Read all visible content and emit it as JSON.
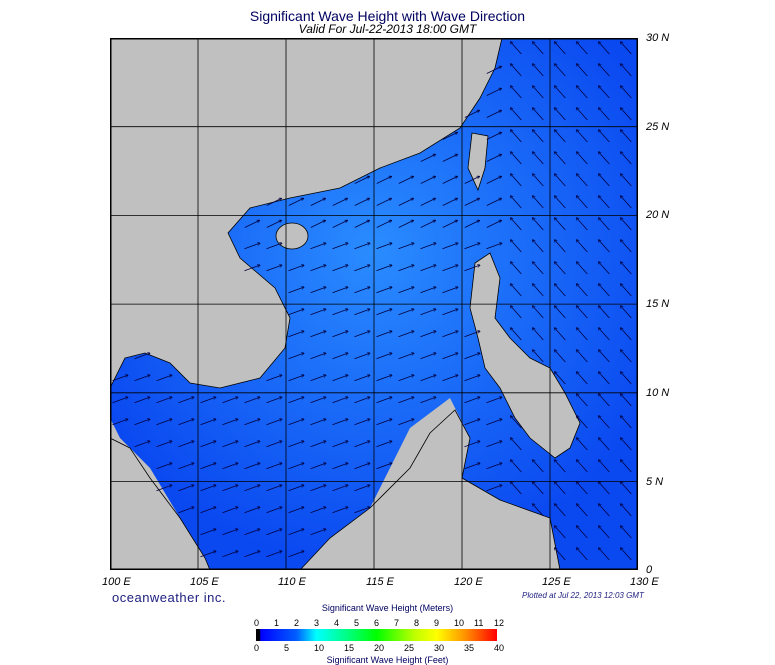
{
  "title": "Significant Wave Height with Wave Direction",
  "subtitle": "Valid For Jul-22-2013 18:00 GMT",
  "lon_labels": [
    "100 E",
    "105 E",
    "110 E",
    "115 E",
    "120 E",
    "125 E",
    "130 E"
  ],
  "lat_labels": [
    "30 N",
    "25 N",
    "20 N",
    "15 N",
    "10 N",
    "5 N",
    "0"
  ],
  "brand": "oceanweather inc.",
  "plotted": "Plotted at Jul 22, 2013 12:03 GMT",
  "colorbar": {
    "meters_label": "Significant Wave Height (Meters)",
    "feet_label": "Significant Wave Height (Feet)",
    "meters_ticks": [
      "0",
      "1",
      "2",
      "3",
      "4",
      "5",
      "6",
      "7",
      "8",
      "9",
      "10",
      "11",
      "12"
    ],
    "feet_ticks": [
      "0",
      "5",
      "10",
      "15",
      "20",
      "25",
      "30",
      "35",
      "40"
    ]
  },
  "colors": {
    "land": "#c0c0c0",
    "water_low": "#0040ff",
    "water_mid": "#2080ff",
    "frame": "#000000"
  },
  "map": {
    "lon_range": [
      100,
      130
    ],
    "lat_range": [
      0,
      30
    ],
    "grid_step_deg": 5
  }
}
